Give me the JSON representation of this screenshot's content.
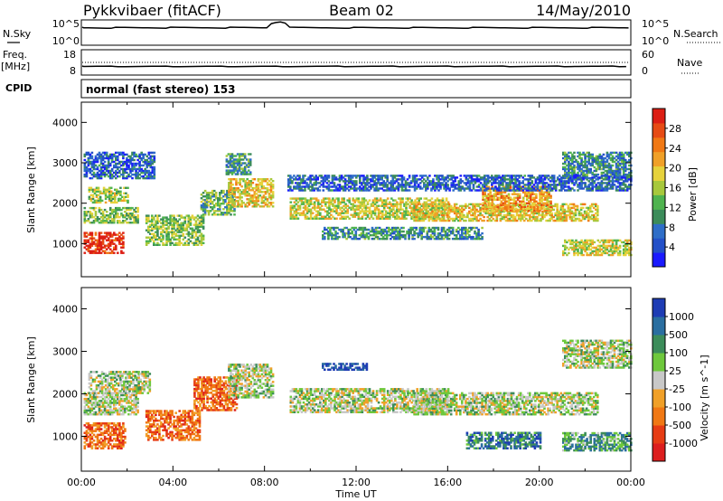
{
  "header": {
    "radar": "Pykkvibaer (fitACF)",
    "beam": "Beam 02",
    "date": "14/May/2010"
  },
  "noise_panel": {
    "left_label": "N.Sky",
    "left_ticks": [
      "10^5",
      "10^0"
    ],
    "right_ticks": [
      "10^5",
      "10^0"
    ],
    "right_label": "N.Search"
  },
  "freq_panel": {
    "left_label_1": "Freq.",
    "left_label_2": "[MHz]",
    "left_ticks": [
      "18",
      "8"
    ],
    "right_ticks": [
      "60",
      "0"
    ],
    "right_label": "Nave"
  },
  "cpid": {
    "label": "CPID",
    "text": "normal (fast stereo) 153"
  },
  "chart_data": [
    {
      "type": "heatmap",
      "title": "",
      "xlabel": "Time UT",
      "ylabel": "Slant Range [km]",
      "x_range_hours": [
        0,
        24
      ],
      "ylim": [
        180,
        4500
      ],
      "x_ticks": [
        "00:00",
        "04:00",
        "08:00",
        "12:00",
        "16:00",
        "20:00",
        "00:00"
      ],
      "y_ticks": [
        "1000",
        "2000",
        "3000",
        "4000"
      ],
      "colorbar": {
        "label": "Power [dB]",
        "ticks": [
          "4",
          "8",
          "12",
          "16",
          "20",
          "24",
          "28"
        ],
        "colors": [
          "#1a1aff",
          "#2350c8",
          "#2f6ec8",
          "#3c8c5a",
          "#4fb34f",
          "#a7c83c",
          "#e6d23c",
          "#f0a028",
          "#f07814",
          "#e64b14",
          "#dc1e14"
        ]
      },
      "bands": [
        {
          "t0": 0.1,
          "t1": 1.8,
          "r_low": 750,
          "r_high": 1250,
          "level": 0.95
        },
        {
          "t0": 0.1,
          "t1": 2.5,
          "r_low": 1500,
          "r_high": 1900,
          "level": 0.45
        },
        {
          "t0": 0.3,
          "t1": 2.0,
          "r_low": 2000,
          "r_high": 2400,
          "level": 0.5
        },
        {
          "t0": 0.1,
          "t1": 3.2,
          "r_low": 2600,
          "r_high": 3250,
          "level": 0.2
        },
        {
          "t0": 2.8,
          "t1": 5.3,
          "r_low": 950,
          "r_high": 1700,
          "level": 0.45
        },
        {
          "t0": 5.2,
          "t1": 6.7,
          "r_low": 1700,
          "r_high": 2300,
          "level": 0.4
        },
        {
          "t0": 6.4,
          "t1": 8.4,
          "r_low": 1900,
          "r_high": 2600,
          "level": 0.6
        },
        {
          "t0": 6.3,
          "t1": 7.4,
          "r_low": 2700,
          "r_high": 3200,
          "level": 0.35
        },
        {
          "t0": 9.1,
          "t1": 16.0,
          "r_low": 1600,
          "r_high": 2100,
          "level": 0.55
        },
        {
          "t0": 10.5,
          "t1": 17.5,
          "r_low": 1100,
          "r_high": 1400,
          "level": 0.3
        },
        {
          "t0": 14.5,
          "t1": 22.5,
          "r_low": 1550,
          "r_high": 2000,
          "level": 0.6
        },
        {
          "t0": 17.5,
          "t1": 20.5,
          "r_low": 1800,
          "r_high": 2400,
          "level": 0.7
        },
        {
          "t0": 21.0,
          "t1": 24.0,
          "r_low": 700,
          "r_high": 1100,
          "level": 0.55
        },
        {
          "t0": 21.0,
          "t1": 24.0,
          "r_low": 2600,
          "r_high": 3250,
          "level": 0.3
        },
        {
          "t0": 9.0,
          "t1": 24.0,
          "r_low": 2300,
          "r_high": 2700,
          "level": 0.2
        }
      ]
    },
    {
      "type": "heatmap",
      "title": "",
      "xlabel": "Time UT",
      "ylabel": "Slant Range [km]",
      "x_range_hours": [
        0,
        24
      ],
      "ylim": [
        180,
        4500
      ],
      "x_ticks": [
        "00:00",
        "04:00",
        "08:00",
        "12:00",
        "16:00",
        "20:00",
        "00:00"
      ],
      "y_ticks": [
        "1000",
        "2000",
        "3000",
        "4000"
      ],
      "colorbar": {
        "label": "Velocity [m s^-1]",
        "ticks": [
          "1000",
          "500",
          "100",
          "25",
          "-25",
          "-100",
          "-500",
          "-1000"
        ],
        "colors": [
          "#1e3cb4",
          "#2a6ea0",
          "#3c8c5a",
          "#6ec83c",
          "#c8c8c8",
          "#f0a028",
          "#f07814",
          "#e63c14",
          "#dc1e1e"
        ]
      },
      "bands": [
        {
          "t0": 0.1,
          "t1": 1.9,
          "r_low": 700,
          "r_high": 1300,
          "level": 0.75
        },
        {
          "t0": 0.1,
          "t1": 2.5,
          "r_low": 1500,
          "r_high": 2000,
          "level": 0.45
        },
        {
          "t0": 0.3,
          "t1": 3.0,
          "r_low": 2000,
          "r_high": 2500,
          "level": 0.45
        },
        {
          "t0": 2.8,
          "t1": 5.2,
          "r_low": 900,
          "r_high": 1600,
          "level": 0.75
        },
        {
          "t0": 4.9,
          "t1": 6.8,
          "r_low": 1600,
          "r_high": 2400,
          "level": 0.75
        },
        {
          "t0": 6.4,
          "t1": 8.4,
          "r_low": 1900,
          "r_high": 2700,
          "level": 0.45
        },
        {
          "t0": 9.1,
          "t1": 16.0,
          "r_low": 1550,
          "r_high": 2100,
          "level": 0.45
        },
        {
          "t0": 10.5,
          "t1": 12.5,
          "r_low": 2550,
          "r_high": 2700,
          "level": 0.05
        },
        {
          "t0": 14.5,
          "t1": 22.5,
          "r_low": 1500,
          "r_high": 2000,
          "level": 0.45
        },
        {
          "t0": 16.8,
          "t1": 20.0,
          "r_low": 700,
          "r_high": 1100,
          "level": 0.2
        },
        {
          "t0": 21.0,
          "t1": 24.0,
          "r_low": 650,
          "r_high": 1100,
          "level": 0.3
        },
        {
          "t0": 21.0,
          "t1": 24.0,
          "r_low": 2600,
          "r_high": 3250,
          "level": 0.45
        }
      ]
    }
  ]
}
